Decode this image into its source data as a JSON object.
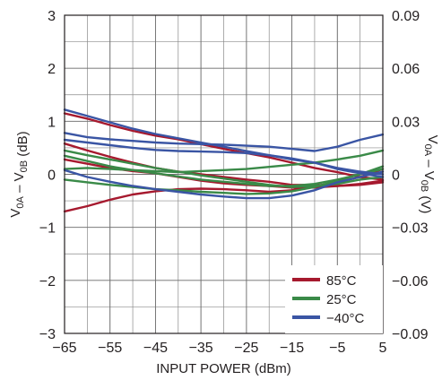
{
  "chart_data": {
    "type": "line",
    "title": "",
    "xlabel": "INPUT POWER (dBm)",
    "ylabel": "V_{0A} – V_{0B} (dB)",
    "y2label": "V_{0A} – V_{0B} (V)",
    "xlim": [
      -65,
      5
    ],
    "ylim": [
      -3,
      3
    ],
    "y2lim": [
      -0.09,
      0.09
    ],
    "x_ticks": [
      -65,
      -55,
      -45,
      -35,
      -25,
      -15,
      -5,
      5
    ],
    "x_tick_labels": [
      "−65",
      "−55",
      "−45",
      "−35",
      "−25",
      "−15",
      "−5",
      "5"
    ],
    "y_ticks": [
      -3,
      -2,
      -1,
      0,
      1,
      2,
      3
    ],
    "y_tick_labels": [
      "−3",
      "−2",
      "−1",
      "0",
      "1",
      "2",
      "3"
    ],
    "y2_ticks": [
      -0.09,
      -0.06,
      -0.03,
      0,
      0.03,
      0.06,
      0.09
    ],
    "y2_tick_labels": [
      "−0.09",
      "−0.06",
      "−0.03",
      "0",
      "0.03",
      "0.06",
      "0.09"
    ],
    "x_minor_step": 5,
    "y_minor_step": 0.5,
    "grid": true,
    "legend_position": "bottom-right",
    "legend": [
      {
        "label": "85°C",
        "color": "#a6192e"
      },
      {
        "label": "25°C",
        "color": "#3a8a48"
      },
      {
        "label": "−40°C",
        "color": "#3a55a4"
      }
    ],
    "x": [
      -65,
      -60,
      -55,
      -50,
      -45,
      -40,
      -35,
      -30,
      -25,
      -20,
      -15,
      -10,
      -5,
      0,
      5
    ],
    "series": [
      {
        "group": "85°C",
        "color": "#a6192e",
        "values": [
          1.15,
          1.05,
          0.93,
          0.82,
          0.73,
          0.66,
          0.57,
          0.48,
          0.4,
          0.32,
          0.22,
          0.12,
          0.04,
          -0.05,
          -0.1
        ]
      },
      {
        "group": "85°C",
        "color": "#a6192e",
        "values": [
          0.58,
          0.45,
          0.33,
          0.22,
          0.12,
          0.05,
          0.0,
          -0.05,
          -0.1,
          -0.14,
          -0.2,
          -0.2,
          -0.22,
          -0.2,
          -0.15
        ]
      },
      {
        "group": "85°C",
        "color": "#a6192e",
        "values": [
          0.28,
          0.2,
          0.12,
          0.06,
          0.02,
          -0.05,
          -0.12,
          -0.17,
          -0.2,
          -0.22,
          -0.25,
          -0.25,
          -0.22,
          -0.18,
          -0.12
        ]
      },
      {
        "group": "85°C",
        "color": "#a6192e",
        "values": [
          -0.7,
          -0.6,
          -0.48,
          -0.38,
          -0.32,
          -0.28,
          -0.27,
          -0.28,
          -0.3,
          -0.33,
          -0.3,
          -0.22,
          -0.15,
          -0.05,
          0.1
        ]
      },
      {
        "group": "25°C",
        "color": "#3a8a48",
        "values": [
          0.35,
          0.25,
          0.15,
          0.08,
          0.02,
          -0.04,
          -0.1,
          -0.14,
          -0.18,
          -0.22,
          -0.22,
          -0.18,
          -0.1,
          0.0,
          0.1
        ]
      },
      {
        "group": "25°C",
        "color": "#3a8a48",
        "values": [
          0.1,
          0.12,
          0.1,
          0.08,
          0.06,
          0.04,
          0.06,
          0.08,
          0.1,
          0.14,
          0.18,
          0.22,
          0.28,
          0.35,
          0.45
        ]
      },
      {
        "group": "25°C",
        "color": "#3a8a48",
        "values": [
          -0.1,
          -0.15,
          -0.2,
          -0.24,
          -0.28,
          -0.3,
          -0.33,
          -0.35,
          -0.37,
          -0.36,
          -0.32,
          -0.24,
          -0.12,
          0.0,
          0.15
        ]
      },
      {
        "group": "25°C",
        "color": "#3a8a48",
        "values": [
          0.45,
          0.36,
          0.28,
          0.2,
          0.12,
          0.05,
          -0.02,
          -0.08,
          -0.14,
          -0.2,
          -0.24,
          -0.22,
          -0.18,
          -0.1,
          -0.05
        ]
      },
      {
        "group": "−40°C",
        "color": "#3a55a4",
        "values": [
          1.22,
          1.1,
          0.98,
          0.86,
          0.76,
          0.68,
          0.6,
          0.52,
          0.44,
          0.36,
          0.28,
          0.22,
          0.1,
          0.02,
          -0.05
        ]
      },
      {
        "group": "−40°C",
        "color": "#3a55a4",
        "values": [
          0.78,
          0.7,
          0.66,
          0.63,
          0.6,
          0.58,
          0.57,
          0.56,
          0.54,
          0.52,
          0.48,
          0.44,
          0.52,
          0.65,
          0.75
        ]
      },
      {
        "group": "−40°C",
        "color": "#3a55a4",
        "values": [
          0.65,
          0.6,
          0.55,
          0.5,
          0.46,
          0.44,
          0.43,
          0.42,
          0.4,
          0.36,
          0.3,
          0.22,
          0.12,
          0.05,
          0.0
        ]
      },
      {
        "group": "−40°C",
        "color": "#3a55a4",
        "values": [
          0.08,
          -0.05,
          -0.14,
          -0.22,
          -0.28,
          -0.33,
          -0.38,
          -0.42,
          -0.45,
          -0.45,
          -0.4,
          -0.3,
          -0.15,
          -0.05,
          0.05
        ]
      }
    ]
  }
}
